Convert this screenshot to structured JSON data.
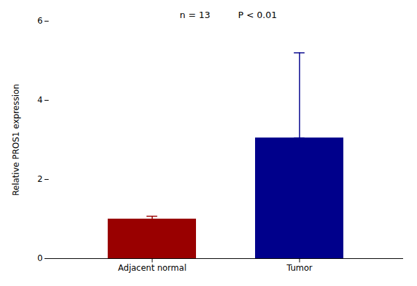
{
  "chart_data": {
    "type": "bar",
    "categories": [
      "Adjacent normal",
      "Tumor"
    ],
    "values": [
      1.0,
      3.05
    ],
    "errors_upper": [
      0.07,
      2.15
    ],
    "errors_lower": [
      0.07,
      0.0
    ],
    "colors": [
      "#990000",
      "#00008B"
    ],
    "ylabel": "Relative PROS1 expression",
    "ylim": [
      0,
      6
    ],
    "yticks": [
      0,
      2,
      4,
      6
    ],
    "annotations": [
      "n = 13",
      "P < 0.01"
    ],
    "grid": false
  }
}
